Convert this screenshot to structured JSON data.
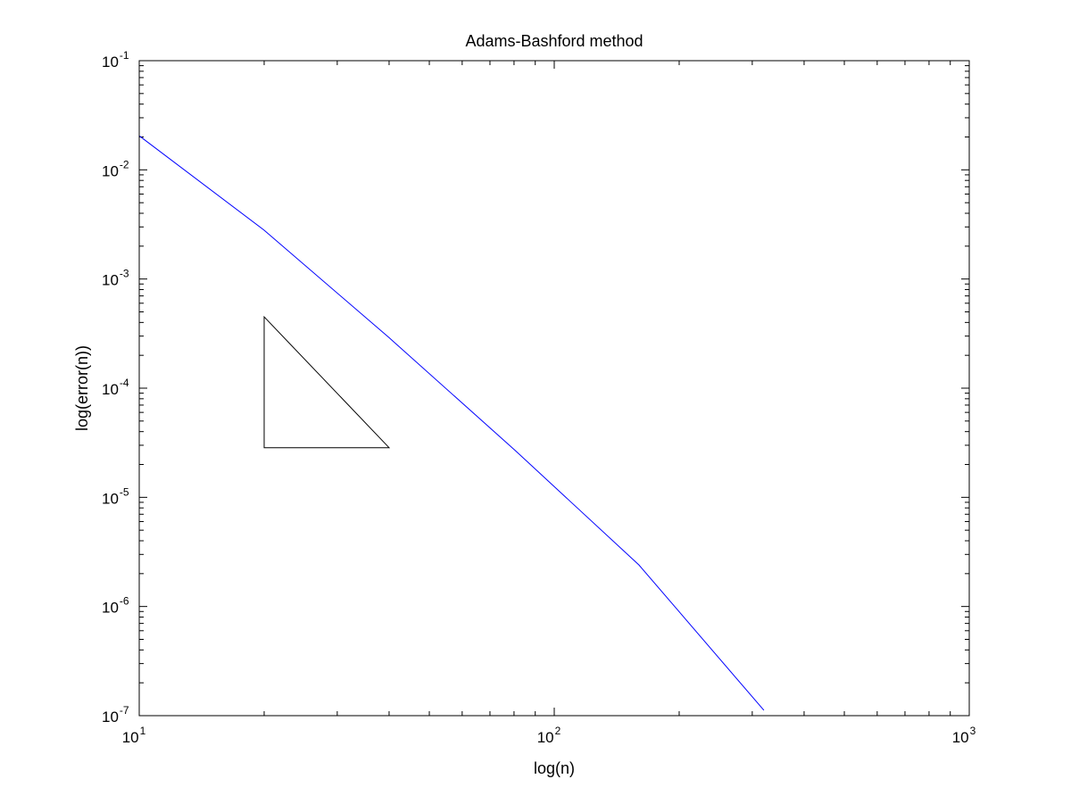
{
  "chart_data": {
    "type": "line",
    "title": "Adams-Bashford method",
    "xlabel": "log(n)",
    "ylabel": "log(error(n))",
    "xscale": "log",
    "yscale": "log",
    "xlim": [
      10,
      1000
    ],
    "ylim": [
      1e-07,
      0.1
    ],
    "grid": false,
    "legend": "none",
    "x_ticks": [
      {
        "value": 10,
        "base": "10",
        "exp": "1"
      },
      {
        "value": 100,
        "base": "10",
        "exp": "2"
      },
      {
        "value": 1000,
        "base": "10",
        "exp": "3"
      }
    ],
    "y_ticks": [
      {
        "value": 1e-07,
        "base": "10",
        "exp": "-7"
      },
      {
        "value": 1e-06,
        "base": "10",
        "exp": "-6"
      },
      {
        "value": 1e-05,
        "base": "10",
        "exp": "-5"
      },
      {
        "value": 0.0001,
        "base": "10",
        "exp": "-4"
      },
      {
        "value": 0.001,
        "base": "10",
        "exp": "-3"
      },
      {
        "value": 0.01,
        "base": "10",
        "exp": "-2"
      },
      {
        "value": 0.1,
        "base": "10",
        "exp": "-1"
      }
    ],
    "series": [
      {
        "color": "#0000ff",
        "x": [
          10,
          20,
          40,
          80,
          160,
          320
        ],
        "y": [
          0.0205,
          0.0028,
          0.00029,
          2.75e-05,
          2.4e-06,
          1.12e-07
        ]
      }
    ],
    "reference_triangle": {
      "color": "#000000",
      "x": [
        20,
        20,
        40
      ],
      "y": [
        0.00045,
        2.85e-05,
        2.85e-05
      ]
    }
  }
}
